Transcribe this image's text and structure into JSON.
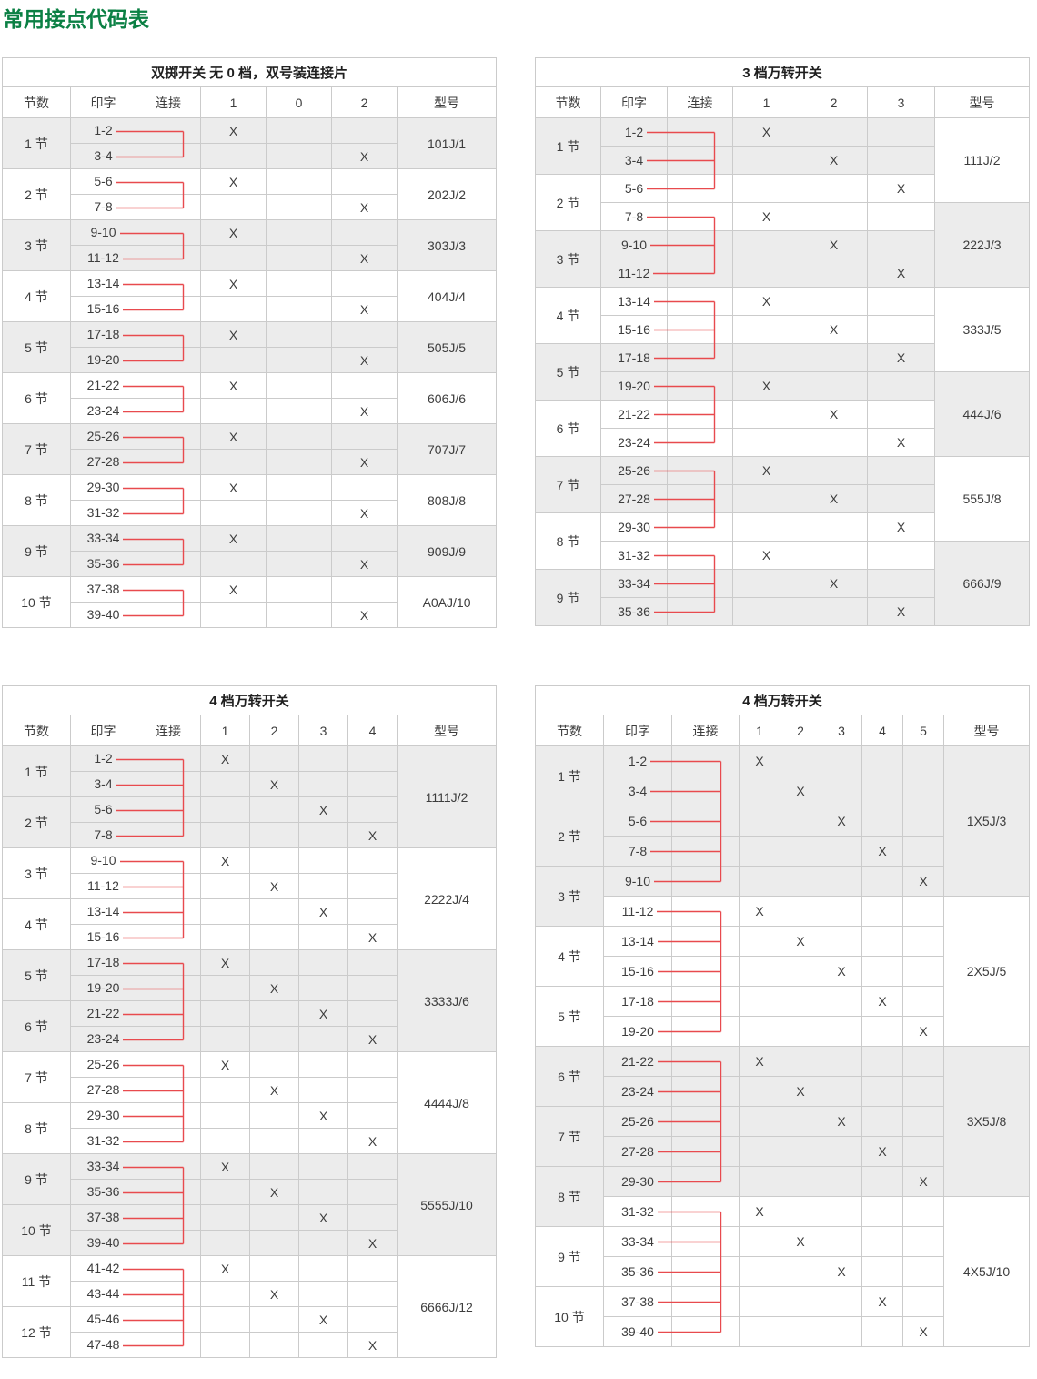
{
  "page_title": "常用接点代码表",
  "x_mark": "X",
  "colors": {
    "title_green": "#0b8044",
    "connector_red": "#e84a4e",
    "row_shade": "#ececec",
    "border": "#cbcbcb",
    "text": "#3d3d3d"
  },
  "tables": [
    {
      "title": "双掷开关 无 0 档，双号装连接片",
      "headers": {
        "jie": "节数",
        "print": "印字",
        "connect": "连接",
        "model": "型号"
      },
      "positions": [
        "1",
        "0",
        "2"
      ],
      "jie_labels": [
        "1 节",
        "2 节",
        "3 节",
        "4 节",
        "5 节",
        "6 节",
        "7 节",
        "8 节",
        "9 节",
        "10 节"
      ],
      "models": [
        "101J/1",
        "202J/2",
        "303J/3",
        "404J/4",
        "505J/5",
        "606J/6",
        "707J/7",
        "808J/8",
        "909J/9",
        "A0AJ/10"
      ],
      "model_span": 2,
      "connector_span": 2,
      "shade": {
        "row_group": "jie",
        "model_gray_parity": 0
      },
      "rows": [
        {
          "print": "1-2",
          "x": 0
        },
        {
          "print": "3-4",
          "x": 2
        },
        {
          "print": "5-6",
          "x": 0
        },
        {
          "print": "7-8",
          "x": 2
        },
        {
          "print": "9-10",
          "x": 0
        },
        {
          "print": "11-12",
          "x": 2
        },
        {
          "print": "13-14",
          "x": 0
        },
        {
          "print": "15-16",
          "x": 2
        },
        {
          "print": "17-18",
          "x": 0
        },
        {
          "print": "19-20",
          "x": 2
        },
        {
          "print": "21-22",
          "x": 0
        },
        {
          "print": "23-24",
          "x": 2
        },
        {
          "print": "25-26",
          "x": 0
        },
        {
          "print": "27-28",
          "x": 2
        },
        {
          "print": "29-30",
          "x": 0
        },
        {
          "print": "31-32",
          "x": 2
        },
        {
          "print": "33-34",
          "x": 0
        },
        {
          "print": "35-36",
          "x": 2
        },
        {
          "print": "37-38",
          "x": 0
        },
        {
          "print": "39-40",
          "x": 2
        }
      ]
    },
    {
      "title": "3 档万转开关",
      "headers": {
        "jie": "节数",
        "print": "印字",
        "connect": "连接",
        "model": "型号"
      },
      "positions": [
        "1",
        "2",
        "3"
      ],
      "jie_labels": [
        "1 节",
        "2 节",
        "3 节",
        "4 节",
        "5 节",
        "6 节",
        "7 节",
        "8 节",
        "9 节"
      ],
      "models": [
        "111J/2",
        "222J/3",
        "333J/5",
        "444J/6",
        "555J/8",
        "666J/9"
      ],
      "model_span": 3,
      "connector_span": 3,
      "shade": {
        "row_group": "jie",
        "model_gray_parity": 1
      },
      "rows": [
        {
          "print": "1-2",
          "x": 0
        },
        {
          "print": "3-4",
          "x": 1
        },
        {
          "print": "5-6",
          "x": 2
        },
        {
          "print": "7-8",
          "x": 0
        },
        {
          "print": "9-10",
          "x": 1
        },
        {
          "print": "11-12",
          "x": 2
        },
        {
          "print": "13-14",
          "x": 0
        },
        {
          "print": "15-16",
          "x": 1
        },
        {
          "print": "17-18",
          "x": 2
        },
        {
          "print": "19-20",
          "x": 0
        },
        {
          "print": "21-22",
          "x": 1
        },
        {
          "print": "23-24",
          "x": 2
        },
        {
          "print": "25-26",
          "x": 0
        },
        {
          "print": "27-28",
          "x": 1
        },
        {
          "print": "29-30",
          "x": 2
        },
        {
          "print": "31-32",
          "x": 0
        },
        {
          "print": "33-34",
          "x": 1
        },
        {
          "print": "35-36",
          "x": 2
        }
      ]
    },
    {
      "title": "4 档万转开关",
      "headers": {
        "jie": "节数",
        "print": "印字",
        "connect": "连接",
        "model": "型号"
      },
      "positions": [
        "1",
        "2",
        "3",
        "4"
      ],
      "jie_labels": [
        "1 节",
        "2 节",
        "3 节",
        "4 节",
        "5 节",
        "6 节",
        "7 节",
        "8 节",
        "9 节",
        "10 节",
        "11 节",
        "12 节"
      ],
      "models": [
        "1111J/2",
        "2222J/4",
        "3333J/6",
        "4444J/8",
        "5555J/10",
        "6666J/12"
      ],
      "model_span": 4,
      "connector_span": 4,
      "shade": {
        "row_group": "model",
        "model_gray_parity": 0
      },
      "rows": [
        {
          "print": "1-2",
          "x": 0
        },
        {
          "print": "3-4",
          "x": 1
        },
        {
          "print": "5-6",
          "x": 2
        },
        {
          "print": "7-8",
          "x": 3
        },
        {
          "print": "9-10",
          "x": 0
        },
        {
          "print": "11-12",
          "x": 1
        },
        {
          "print": "13-14",
          "x": 2
        },
        {
          "print": "15-16",
          "x": 3
        },
        {
          "print": "17-18",
          "x": 0
        },
        {
          "print": "19-20",
          "x": 1
        },
        {
          "print": "21-22",
          "x": 2
        },
        {
          "print": "23-24",
          "x": 3
        },
        {
          "print": "25-26",
          "x": 0
        },
        {
          "print": "27-28",
          "x": 1
        },
        {
          "print": "29-30",
          "x": 2
        },
        {
          "print": "31-32",
          "x": 3
        },
        {
          "print": "33-34",
          "x": 0
        },
        {
          "print": "35-36",
          "x": 1
        },
        {
          "print": "37-38",
          "x": 2
        },
        {
          "print": "39-40",
          "x": 3
        },
        {
          "print": "41-42",
          "x": 0
        },
        {
          "print": "43-44",
          "x": 1
        },
        {
          "print": "45-46",
          "x": 2
        },
        {
          "print": "47-48",
          "x": 3
        }
      ]
    },
    {
      "title": "4 档万转开关",
      "headers": {
        "jie": "节数",
        "print": "印字",
        "connect": "连接",
        "model": "型号"
      },
      "positions": [
        "1",
        "2",
        "3",
        "4",
        "5"
      ],
      "jie_labels": [
        "1 节",
        "2 节",
        "3 节",
        "4 节",
        "5 节",
        "6 节",
        "7 节",
        "8 节",
        "9 节",
        "10 节"
      ],
      "models": [
        "1X5J/3",
        "2X5J/5",
        "3X5J/8",
        "4X5J/10"
      ],
      "model_span": 5,
      "connector_span": 5,
      "shade": {
        "row_group": "model",
        "model_gray_parity": 0
      },
      "rows": [
        {
          "print": "1-2",
          "x": 0
        },
        {
          "print": "3-4",
          "x": 1
        },
        {
          "print": "5-6",
          "x": 2
        },
        {
          "print": "7-8",
          "x": 3
        },
        {
          "print": "9-10",
          "x": 4
        },
        {
          "print": "11-12",
          "x": 0
        },
        {
          "print": "13-14",
          "x": 1
        },
        {
          "print": "15-16",
          "x": 2
        },
        {
          "print": "17-18",
          "x": 3
        },
        {
          "print": "19-20",
          "x": 4
        },
        {
          "print": "21-22",
          "x": 0
        },
        {
          "print": "23-24",
          "x": 1
        },
        {
          "print": "25-26",
          "x": 2
        },
        {
          "print": "27-28",
          "x": 3
        },
        {
          "print": "29-30",
          "x": 4
        },
        {
          "print": "31-32",
          "x": 0
        },
        {
          "print": "33-34",
          "x": 1
        },
        {
          "print": "35-36",
          "x": 2
        },
        {
          "print": "37-38",
          "x": 3
        },
        {
          "print": "39-40",
          "x": 4
        }
      ]
    }
  ]
}
